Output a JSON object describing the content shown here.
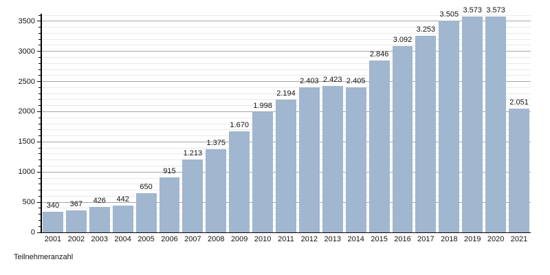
{
  "chart_data": {
    "type": "bar",
    "title": "",
    "xlabel": "",
    "ylabel": "Teilnehmeranzahl",
    "categories": [
      "2001",
      "2002",
      "2003",
      "2004",
      "2005",
      "2006",
      "2007",
      "2008",
      "2009",
      "2010",
      "2011",
      "2012",
      "2013",
      "2014",
      "2015",
      "2016",
      "2017",
      "2018",
      "2019",
      "2020",
      "2021"
    ],
    "values": [
      340,
      367,
      426,
      442,
      650,
      915,
      1213,
      1375,
      1670,
      1998,
      2194,
      2403,
      2423,
      2405,
      2846,
      3092,
      3253,
      3505,
      3573,
      3573,
      2051
    ],
    "value_labels": [
      "340",
      "367",
      "426",
      "442",
      "650",
      "915",
      "1.213",
      "1.375",
      "1.670",
      "1.998",
      "2.194",
      "2.403",
      "2.423",
      "2.405",
      "2.846",
      "3.092",
      "3.253",
      "3.505",
      "3.573",
      "3.573",
      "2.051"
    ],
    "ylim": [
      0,
      3600
    ],
    "y_major_step": 500,
    "y_minor_step": 100,
    "y_tick_labels": [
      "0",
      "500",
      "1000",
      "1500",
      "2000",
      "2500",
      "3000",
      "3500"
    ],
    "grid": true,
    "legend_position": "none",
    "colors": {
      "bar": "#a1b6cf",
      "major_grid": "#a6a6a6",
      "minor_grid": "#e9e9e9",
      "axis": "#000000",
      "text": "#111111",
      "background": "#ffffff"
    }
  }
}
